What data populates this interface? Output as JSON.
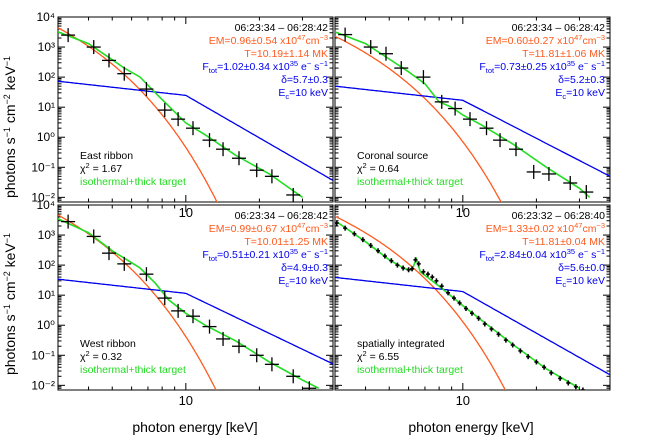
{
  "figure": {
    "ylabel_main": "photons s",
    "ylabel_sup1": "−1",
    "ylabel_mid": " cm",
    "ylabel_sup2": "−2",
    "ylabel_end": " keV",
    "ylabel_sup3": "−1",
    "xlabel": "photon energy [keV]"
  },
  "colors": {
    "data": "#000000",
    "thermal": "#ff5a1e",
    "nonthermal": "#0000ee",
    "total": "#22dd22",
    "label_time": "#000000",
    "label_em": "#ff5a1e",
    "label_t": "#ff5a1e",
    "label_f": "#0000ee",
    "label_delta": "#0000ee",
    "label_ec": "#0000ee",
    "label_model": "#22dd22"
  },
  "chart_data": [
    {
      "type": "scatter",
      "panel": "top-left",
      "title": "East ribbon",
      "chi2_label": "χ",
      "chi2_value": " = 1.67",
      "model_label": "isothermal+thick target",
      "time_range": "06:23:34 – 06:28:42",
      "em": "EM=0.96±0.54 x10",
      "em_exp": "47",
      "em_unit": "cm",
      "em_unit_exp": "−3",
      "temperature": "T=10.19±1.14 MK",
      "flux_prefix": "F",
      "flux_sub": "tot",
      "flux": "=1.02±0.34 x10",
      "flux_exp": "35",
      "flux_unit": " e",
      "flux_unit_sup": "−",
      "flux_unit2": " s",
      "flux_unit2_sup": "−1",
      "delta": "δ=5.7±0.3",
      "ec_prefix": "E",
      "ec_sub": "c",
      "ec": "=10 keV",
      "xtick_labels": [
        "10"
      ],
      "ytick_labels": [
        "10⁴",
        "10³",
        "10²",
        "10¹",
        "10⁰",
        "10⁻¹",
        "10⁻²"
      ],
      "xlim": [
        3,
        40
      ],
      "ylim": [
        0.007,
        10000
      ],
      "xlabel": "",
      "ylabel": "photons s⁻¹ cm⁻² keV⁻¹",
      "data": [
        [
          3.3,
          2500
        ],
        [
          4.2,
          1000
        ],
        [
          4.85,
          360
        ],
        [
          5.6,
          130
        ],
        [
          6.9,
          40
        ],
        [
          8.2,
          8
        ],
        [
          9.3,
          4
        ],
        [
          10.7,
          2
        ],
        [
          12.5,
          0.8
        ],
        [
          14.2,
          0.4
        ],
        [
          16.5,
          0.2
        ],
        [
          19.5,
          0.08
        ],
        [
          22.5,
          0.05
        ],
        [
          27.5,
          0.012
        ]
      ],
      "thermal": {
        "A": 400000.0,
        "T": 10.19
      },
      "nonthermal": {
        "c": 73,
        "delta": 5.7,
        "ec": 10
      },
      "total_model": [
        [
          3,
          3200
        ],
        [
          4,
          1300
        ],
        [
          5,
          380
        ],
        [
          5.6,
          200
        ],
        [
          6.5,
          100
        ],
        [
          7.5,
          30
        ],
        [
          8.5,
          11
        ],
        [
          10,
          3
        ],
        [
          12,
          1.2
        ],
        [
          16,
          0.25
        ],
        [
          22,
          0.06
        ],
        [
          30,
          0.01
        ]
      ]
    },
    {
      "type": "scatter",
      "panel": "top-right",
      "title": "Coronal source",
      "chi2_label": "χ",
      "chi2_value": " = 0.64",
      "model_label": "isothermal+thick target",
      "time_range": "06:23:34 – 06:28:42",
      "em": "EM=0.60±0.27 x10",
      "em_exp": "47",
      "em_unit": "cm",
      "em_unit_exp": "−3",
      "temperature": "T=11.81±1.06 MK",
      "flux_prefix": "F",
      "flux_sub": "tot",
      "flux": "=0.73±0.25 x10",
      "flux_exp": "35",
      "flux_unit": " e",
      "flux_unit_sup": "−",
      "flux_unit2": " s",
      "flux_unit2_sup": "−1",
      "delta": "δ=5.2±0.3",
      "ec_prefix": "E",
      "ec_sub": "c",
      "ec": "=10 keV",
      "xtick_labels": [
        "10"
      ],
      "ytick_labels": [],
      "xlim": [
        3,
        40
      ],
      "ylim": [
        0.007,
        10000
      ],
      "xlabel": "",
      "ylabel": "",
      "data": [
        [
          3.3,
          2600
        ],
        [
          4.2,
          1000
        ],
        [
          4.85,
          600
        ],
        [
          5.6,
          200
        ],
        [
          6.9,
          100
        ],
        [
          8.2,
          15
        ],
        [
          9.3,
          9
        ],
        [
          10.7,
          4
        ],
        [
          12.5,
          2
        ],
        [
          14.2,
          0.8
        ],
        [
          16.5,
          0.4
        ],
        [
          19.5,
          0.07
        ],
        [
          22.5,
          0.06
        ],
        [
          27.5,
          0.03
        ],
        [
          32,
          0.015
        ]
      ],
      "thermal": {
        "A": 130000.0,
        "T": 11.81
      },
      "nonthermal": {
        "c": 50,
        "delta": 5.2,
        "ec": 10
      },
      "total_model": [
        [
          3,
          3200
        ],
        [
          4,
          1300
        ],
        [
          5,
          400
        ],
        [
          6,
          150
        ],
        [
          7,
          60
        ],
        [
          8,
          15
        ],
        [
          9,
          10
        ],
        [
          10,
          5.5
        ],
        [
          12,
          2.5
        ],
        [
          16,
          0.6
        ],
        [
          22,
          0.1
        ],
        [
          30,
          0.02
        ],
        [
          33,
          0.01
        ]
      ]
    },
    {
      "type": "scatter",
      "panel": "bottom-left",
      "title": "West ribbon",
      "chi2_label": "χ",
      "chi2_value": " = 0.32",
      "model_label": "isothermal+thick target",
      "time_range": "06:23:34 – 06:28:42",
      "em": "EM=0.99±0.67 x10",
      "em_exp": "47",
      "em_unit": "cm",
      "em_unit_exp": "−3",
      "temperature": "T=10.01±1.25 MK",
      "flux_prefix": "F",
      "flux_sub": "tot",
      "flux": "=0.51±0.21 x10",
      "flux_exp": "35",
      "flux_unit": " e",
      "flux_unit_sup": "−",
      "flux_unit2": " s",
      "flux_unit2_sup": "−1",
      "delta": "δ=4.9±0.3",
      "ec_prefix": "E",
      "ec_sub": "c",
      "ec": "=10 keV",
      "xtick_labels": [
        "10"
      ],
      "ytick_labels": [
        "10⁴",
        "10³",
        "10²",
        "10¹",
        "10⁰",
        "10⁻¹",
        "10⁻²"
      ],
      "xlim": [
        3,
        40
      ],
      "ylim": [
        0.007,
        10000
      ],
      "xlabel": "photon energy [keV]",
      "ylabel": "photons s⁻¹ cm⁻² keV⁻¹",
      "data": [
        [
          3.3,
          2800
        ],
        [
          4.2,
          900
        ],
        [
          4.85,
          250
        ],
        [
          5.6,
          110
        ],
        [
          6.9,
          50
        ],
        [
          8.2,
          8
        ],
        [
          9.3,
          3
        ],
        [
          10.7,
          2
        ],
        [
          12.5,
          0.9
        ],
        [
          14.2,
          0.35
        ],
        [
          16.5,
          0.2
        ],
        [
          19.5,
          0.1
        ],
        [
          22.5,
          0.05
        ],
        [
          27.5,
          0.02
        ],
        [
          32,
          0.008
        ]
      ],
      "thermal": {
        "A": 450000.0,
        "T": 10.01
      },
      "nonthermal": {
        "c": 34,
        "delta": 4.9,
        "ec": 10
      },
      "total_model": [
        [
          3,
          3500
        ],
        [
          4,
          1200
        ],
        [
          5,
          300
        ],
        [
          5.6,
          170
        ],
        [
          6.5,
          80
        ],
        [
          7.5,
          25
        ],
        [
          8.5,
          7
        ],
        [
          10,
          2.5
        ],
        [
          12,
          1
        ],
        [
          16,
          0.3
        ],
        [
          22,
          0.06
        ],
        [
          30,
          0.015
        ],
        [
          35,
          0.008
        ]
      ]
    },
    {
      "type": "line",
      "panel": "bottom-right",
      "title": "spatially integrated",
      "chi2_label": "χ",
      "chi2_value": " = 6.55",
      "model_label": "isothermal+thick target",
      "time_range": "06:23:32 – 06:28:40",
      "em": "EM=1.33±0.02 x10",
      "em_exp": "47",
      "em_unit": "cm",
      "em_unit_exp": "−3",
      "temperature": "T=11.81±0.04 MK",
      "flux_prefix": "F",
      "flux_sub": "tot",
      "flux": "=2.84±0.04 x10",
      "flux_exp": "35",
      "flux_unit": " e",
      "flux_unit_sup": "−",
      "flux_unit2": " s",
      "flux_unit2_sup": "−1",
      "delta": "δ=5.6±0.0",
      "ec_prefix": "E",
      "ec_sub": "c",
      "ec": "=10 keV",
      "xtick_labels": [
        "10"
      ],
      "ytick_labels": [],
      "xlim": [
        3,
        40
      ],
      "ylim": [
        0.007,
        10000
      ],
      "xlabel": "photon energy [keV]",
      "ylabel": "",
      "data": [
        [
          3.05,
          2500
        ],
        [
          3.3,
          1700
        ],
        [
          3.6,
          1100
        ],
        [
          3.9,
          700
        ],
        [
          4.2,
          450
        ],
        [
          4.5,
          300
        ],
        [
          4.8,
          200
        ],
        [
          5.1,
          140
        ],
        [
          5.4,
          100
        ],
        [
          5.7,
          80
        ],
        [
          6.0,
          70
        ],
        [
          6.2,
          75
        ],
        [
          6.4,
          150
        ],
        [
          6.6,
          110
        ],
        [
          6.9,
          60
        ],
        [
          7.2,
          50
        ],
        [
          7.5,
          40
        ],
        [
          7.8,
          30
        ],
        [
          8.2,
          20
        ],
        [
          8.7,
          12
        ],
        [
          9.2,
          8
        ],
        [
          9.7,
          5.5
        ],
        [
          10.3,
          3.6
        ],
        [
          10.9,
          2.5
        ],
        [
          11.6,
          1.7
        ],
        [
          12.3,
          1.1
        ],
        [
          13.1,
          0.75
        ],
        [
          14,
          0.5
        ],
        [
          15,
          0.32
        ],
        [
          16,
          0.22
        ],
        [
          17.2,
          0.14
        ],
        [
          18.5,
          0.09
        ],
        [
          20,
          0.06
        ],
        [
          21.5,
          0.04
        ],
        [
          23,
          0.026
        ],
        [
          25,
          0.017
        ],
        [
          27,
          0.012
        ],
        [
          29,
          0.009
        ],
        [
          31,
          0.007
        ]
      ],
      "thermal": {
        "A": 240000.0,
        "T": 11.81
      },
      "nonthermal": {
        "c": 39,
        "delta": 5.6,
        "ec": 10
      },
      "total_model": [
        [
          3,
          3000
        ],
        [
          4,
          600
        ],
        [
          5,
          150
        ],
        [
          5.8,
          75
        ],
        [
          6.2,
          70
        ],
        [
          6.45,
          160
        ],
        [
          6.7,
          60
        ],
        [
          8,
          20
        ],
        [
          10,
          4.5
        ],
        [
          12,
          1.4
        ],
        [
          16,
          0.23
        ],
        [
          22,
          0.035
        ],
        [
          30,
          0.008
        ]
      ]
    }
  ]
}
